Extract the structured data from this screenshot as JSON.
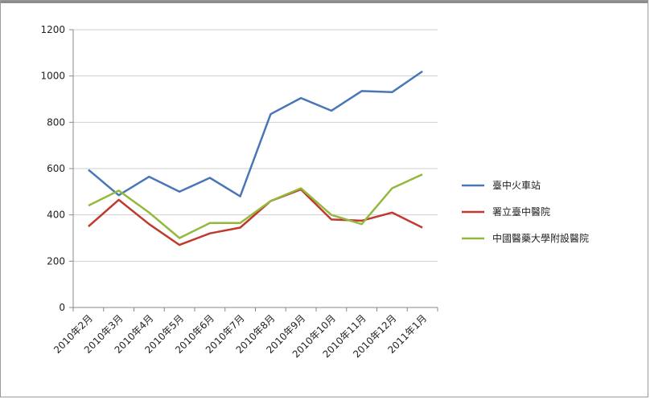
{
  "chart_data": {
    "type": "line",
    "categories": [
      "2010年2月",
      "2010年3月",
      "2010年4月",
      "2010年5月",
      "2010年6月",
      "2010年7月",
      "2010年8月",
      "2010年9月",
      "2010年10月",
      "2010年11月",
      "2010年12月",
      "2011年1月"
    ],
    "series": [
      {
        "name": "臺中火車站",
        "color": "#4a76b8",
        "values": [
          595,
          485,
          565,
          500,
          560,
          480,
          835,
          905,
          850,
          935,
          930,
          1020
        ]
      },
      {
        "name": "署立臺中醫院",
        "color": "#c0392f",
        "values": [
          350,
          465,
          360,
          270,
          320,
          345,
          460,
          510,
          380,
          375,
          410,
          345
        ]
      },
      {
        "name": "中國醫藥大學附設醫院",
        "color": "#93b83c",
        "values": [
          440,
          505,
          410,
          300,
          365,
          365,
          460,
          515,
          400,
          360,
          515,
          575
        ]
      }
    ],
    "y_ticks": [
      "0",
      "200",
      "400",
      "600",
      "800",
      "1000",
      "1200"
    ],
    "ylim": [
      0,
      1200
    ],
    "grid": true,
    "legend": "right"
  }
}
